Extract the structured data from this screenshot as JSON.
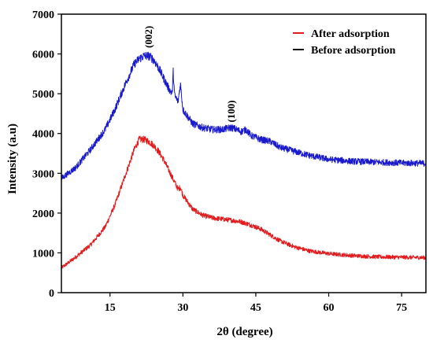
{
  "chart_data": {
    "type": "line",
    "title": "",
    "xlabel": "2θ (degree)",
    "ylabel": "Intensity (a.u)",
    "xlim": [
      5,
      80
    ],
    "ylim": [
      0,
      7000
    ],
    "x_ticks": [
      15,
      30,
      45,
      60,
      75
    ],
    "y_ticks": [
      0,
      1000,
      2000,
      3000,
      4000,
      5000,
      6000,
      7000
    ],
    "grid": false,
    "legend_position": "top-right",
    "annotations": [
      {
        "text": "(002)",
        "x": 23,
        "y": 6150
      },
      {
        "text": "(100)",
        "x": 40,
        "y": 4280
      }
    ],
    "series": [
      {
        "name": "After adsorption",
        "color": "#e41a1c",
        "x": [
          5,
          8,
          11,
          14,
          16,
          18,
          20,
          21,
          22,
          23,
          24,
          25,
          26,
          27,
          28,
          29,
          29.5,
          30,
          32,
          34,
          36,
          38,
          40,
          42,
          44,
          46,
          48,
          50,
          53,
          56,
          60,
          65,
          70,
          75,
          80
        ],
        "y": [
          620,
          900,
          1200,
          1650,
          2200,
          2900,
          3600,
          3850,
          3850,
          3800,
          3700,
          3550,
          3350,
          3100,
          2850,
          2600,
          2650,
          2450,
          2100,
          1950,
          1880,
          1850,
          1820,
          1780,
          1700,
          1600,
          1450,
          1300,
          1150,
          1050,
          980,
          930,
          900,
          890,
          880
        ]
      },
      {
        "name": "Before adsorption",
        "color": "#1a1acd",
        "x": [
          5,
          8,
          11,
          14,
          16,
          18,
          20,
          21,
          22,
          23,
          24,
          25,
          26,
          27,
          27.8,
          28,
          28.3,
          29,
          29.5,
          30,
          32,
          34,
          36,
          38,
          40,
          42,
          43,
          44,
          46,
          48,
          50,
          53,
          56,
          60,
          65,
          70,
          75,
          80
        ],
        "y": [
          2870,
          3150,
          3600,
          4100,
          4600,
          5200,
          5750,
          5880,
          5950,
          5950,
          5850,
          5650,
          5400,
          5150,
          5000,
          5550,
          4950,
          4800,
          5250,
          4600,
          4250,
          4150,
          4100,
          4100,
          4150,
          4050,
          4100,
          3950,
          3850,
          3800,
          3650,
          3550,
          3450,
          3350,
          3300,
          3280,
          3260,
          3250
        ]
      }
    ]
  }
}
